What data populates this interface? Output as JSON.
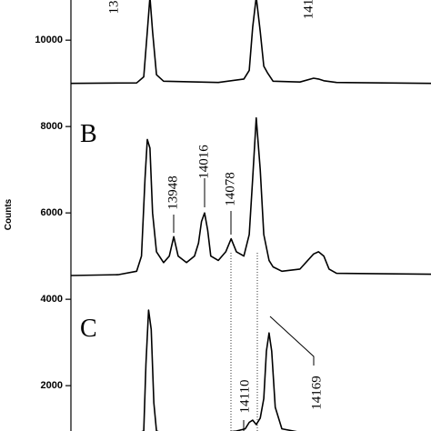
{
  "chart_data": {
    "type": "line",
    "y_label": "Counts",
    "ylim": [
      950,
      10930
    ],
    "yticks": [
      2000,
      4000,
      6000,
      8000,
      10000
    ],
    "xlim": [
      13715,
      14531
    ],
    "panels": [
      "B",
      "C"
    ],
    "annotations": [
      "13",
      "141",
      "13948",
      "14016",
      "14078",
      "14110",
      "14169"
    ],
    "series": [
      {
        "color": "#000000",
        "x": [
          13715,
          13864,
          13880,
          13888,
          13894,
          13900,
          13909,
          13925,
          14049,
          14107,
          14119,
          14127,
          14135,
          14144,
          14152,
          14160,
          14173,
          14234,
          14265,
          14276,
          14288,
          14317,
          14531
        ],
        "values": [
          9000,
          9010,
          9150,
          10200,
          11000,
          10200,
          9200,
          9050,
          9020,
          9100,
          9300,
          10300,
          11000,
          10200,
          9400,
          9250,
          9050,
          9030,
          9120,
          9100,
          9060,
          9020,
          9000
        ]
      },
      {
        "color": "#000000",
        "x": [
          13715,
          13822,
          13864,
          13875,
          13883,
          13888,
          13894,
          13900,
          13909,
          13925,
          13938,
          13948,
          13958,
          13977,
          13995,
          14004,
          14011,
          14018,
          14025,
          14032,
          14049,
          14066,
          14078,
          14090,
          14107,
          14119,
          14127,
          14135,
          14144,
          14152,
          14164,
          14173,
          14193,
          14234,
          14265,
          14276,
          14288,
          14300,
          14317,
          14531
        ],
        "values": [
          4550,
          4570,
          4650,
          5000,
          6800,
          7700,
          7500,
          6000,
          5100,
          4850,
          5000,
          5450,
          5000,
          4850,
          5000,
          5300,
          5800,
          6000,
          5600,
          5000,
          4900,
          5100,
          5400,
          5100,
          5000,
          5500,
          6800,
          8200,
          7000,
          5500,
          4900,
          4750,
          4650,
          4700,
          5050,
          5100,
          5000,
          4700,
          4600,
          4580
        ]
      },
      {
        "color": "#000000",
        "x": [
          13715,
          13864,
          13880,
          13885,
          13891,
          13897,
          13903,
          13909,
          13925,
          14049,
          14090,
          14110,
          14119,
          14127,
          14135,
          14144,
          14152,
          14158,
          14164,
          14170,
          14178,
          14193,
          14234,
          14531
        ],
        "values": [
          900,
          900,
          950,
          2500,
          3750,
          3300,
          1600,
          950,
          900,
          900,
          950,
          1000,
          1150,
          1200,
          1100,
          1250,
          1700,
          2800,
          3220,
          2800,
          1500,
          1000,
          920,
          900
        ]
      }
    ]
  }
}
